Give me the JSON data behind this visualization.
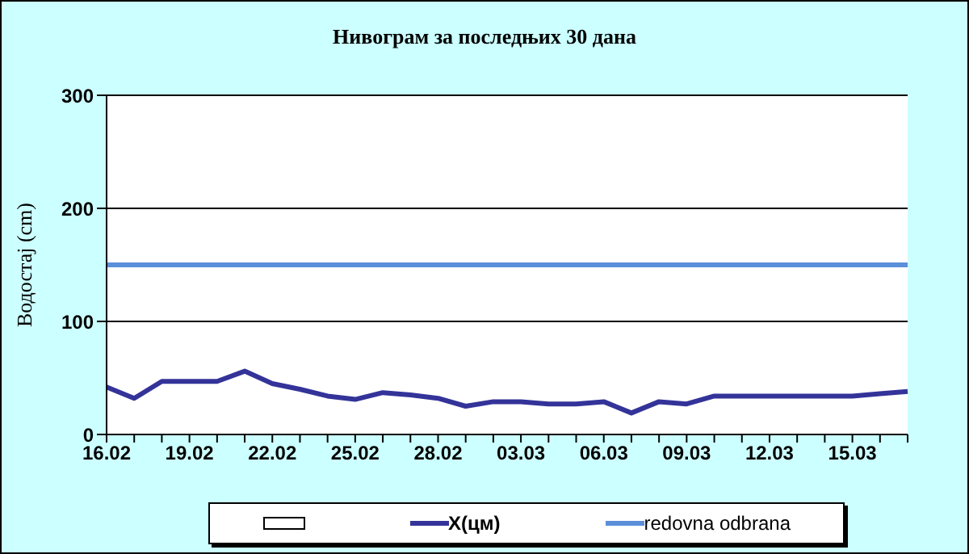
{
  "chart_data": {
    "type": "line",
    "title": "Нивограм за последњих 30 дана",
    "ylabel": "Водостај (cm)",
    "categories": [
      "16.02",
      null,
      null,
      "19.02",
      null,
      null,
      "22.02",
      null,
      null,
      "25.02",
      null,
      null,
      "28.02",
      null,
      null,
      "03.03",
      null,
      null,
      "06.03",
      null,
      null,
      "09.03",
      null,
      null,
      "12.03",
      null,
      null,
      "15.03",
      null,
      null
    ],
    "series": [
      {
        "name": "X(цм)",
        "color": "#333399",
        "values": [
          42,
          32,
          47,
          47,
          47,
          56,
          45,
          40,
          34,
          31,
          37,
          35,
          32,
          25,
          29,
          29,
          27,
          27,
          29,
          19,
          29,
          27,
          34,
          34,
          34,
          34,
          34,
          34,
          36,
          38
        ]
      },
      {
        "name": "redovna odbrana",
        "color": "#5b8fd9",
        "values": [
          150,
          150,
          150,
          150,
          150,
          150,
          150,
          150,
          150,
          150,
          150,
          150,
          150,
          150,
          150,
          150,
          150,
          150,
          150,
          150,
          150,
          150,
          150,
          150,
          150,
          150,
          150,
          150,
          150,
          150
        ]
      }
    ],
    "ylim": [
      0,
      300
    ],
    "yticks": [
      0,
      100,
      200,
      300
    ],
    "grid": "y",
    "legend": "bottom",
    "marker": "none",
    "line_style": "solid"
  }
}
